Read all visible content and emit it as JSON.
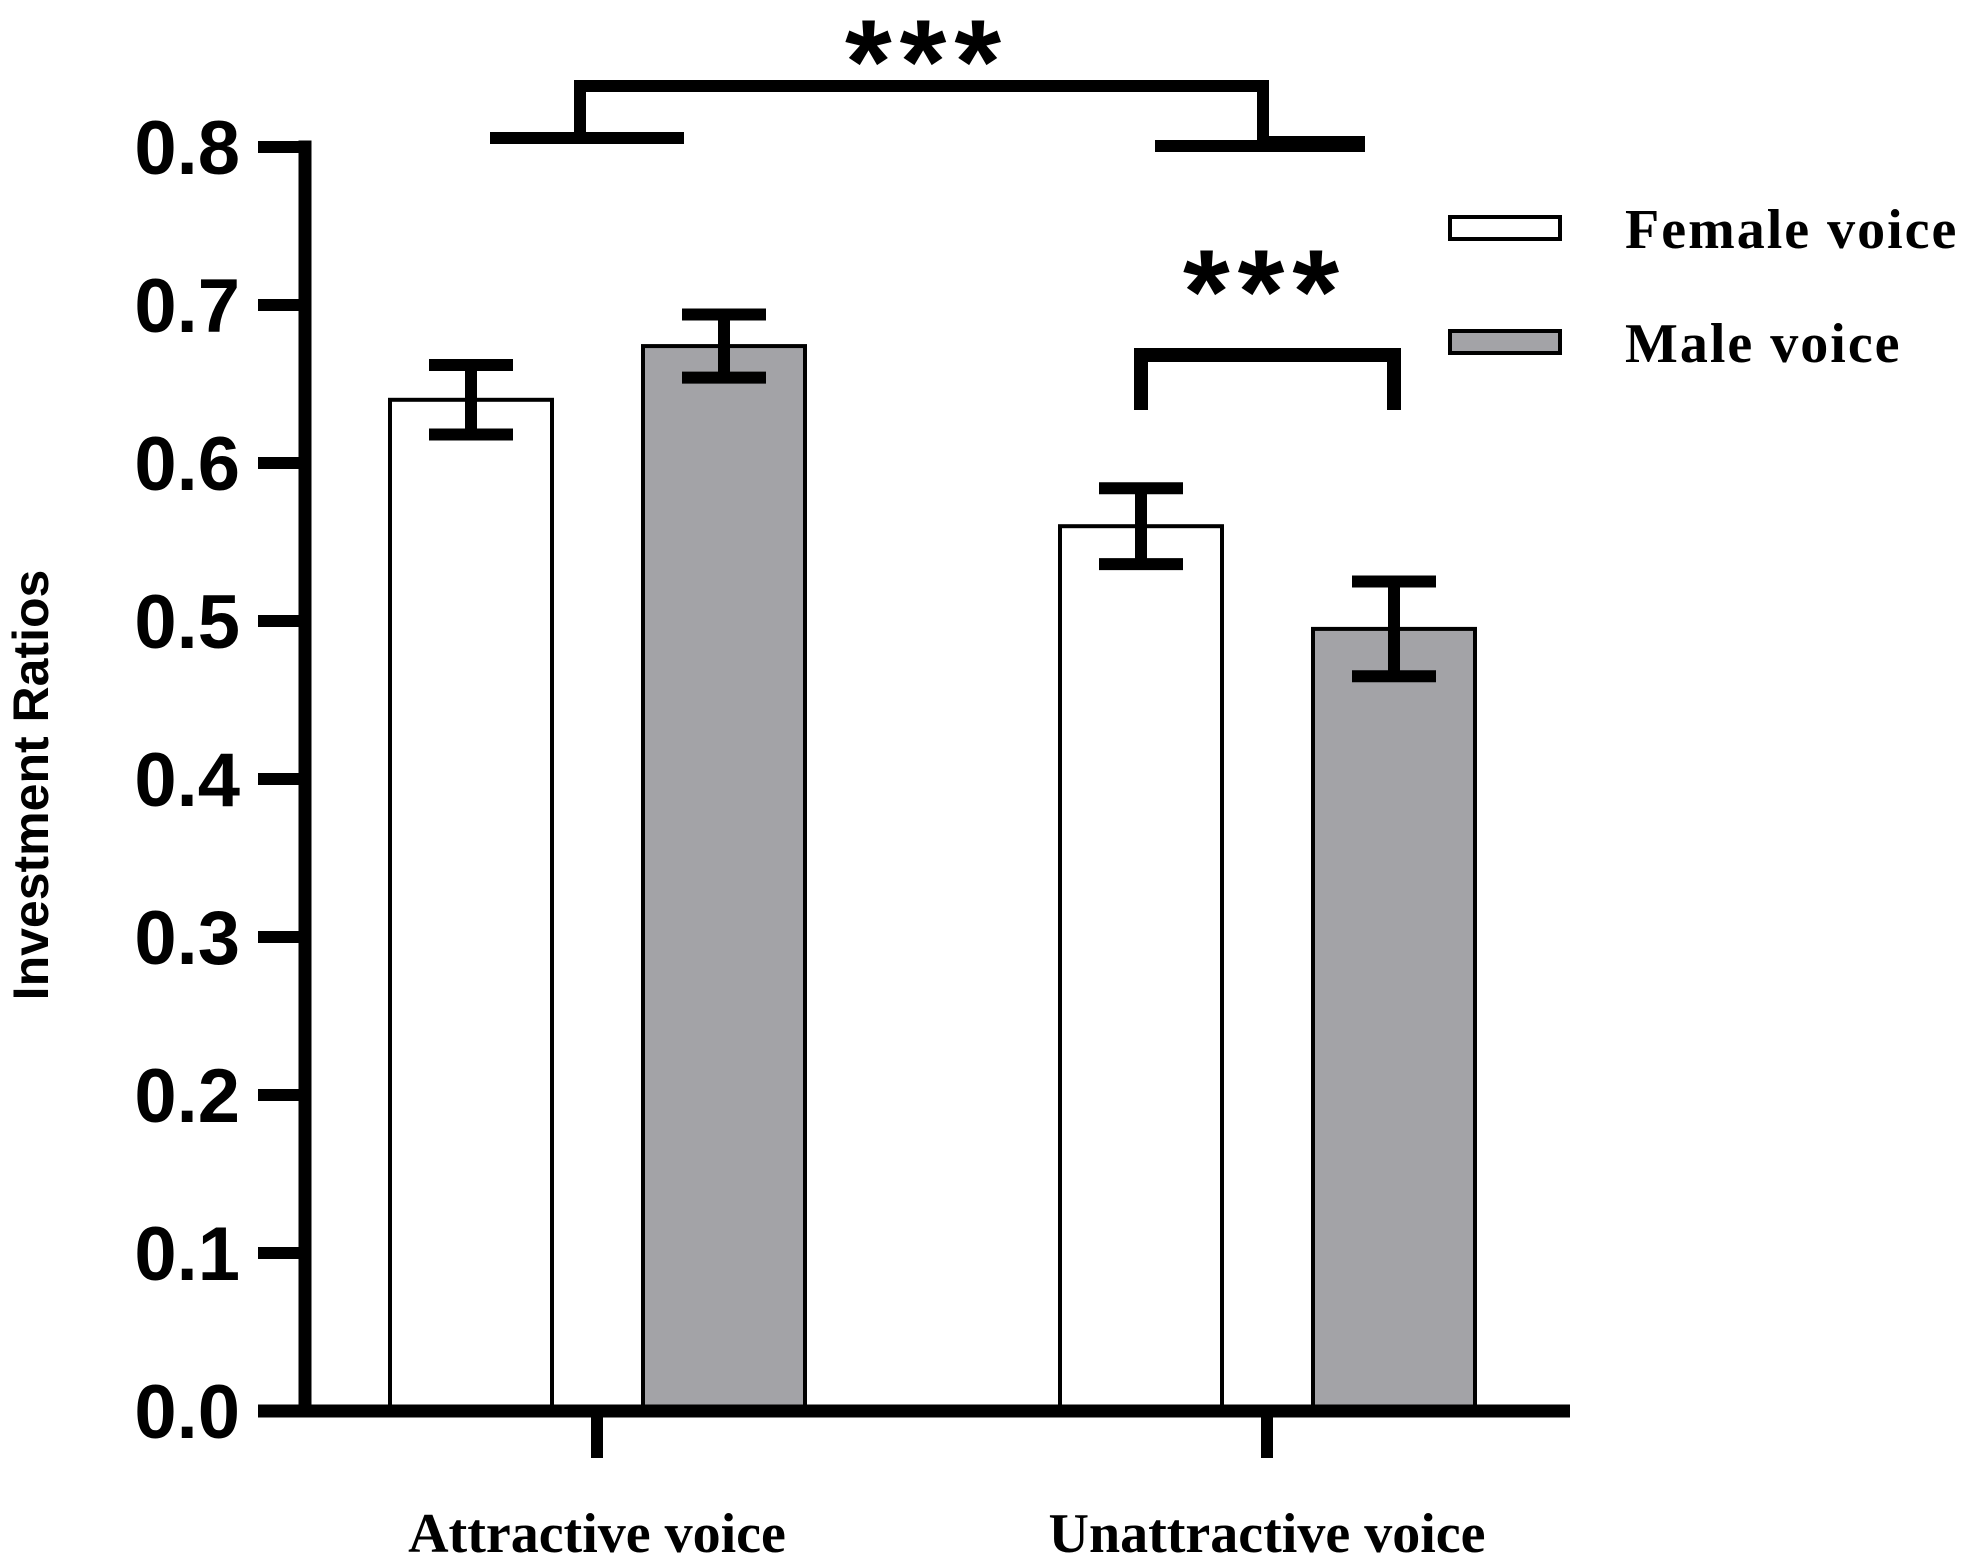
{
  "chart_data": {
    "type": "bar",
    "title": "",
    "xlabel": "",
    "ylabel": "Investment Ratios",
    "ylim": [
      0,
      0.8
    ],
    "yticks": [
      "0.0",
      "0.1",
      "0.2",
      "0.3",
      "0.4",
      "0.5",
      "0.6",
      "0.7",
      "0.8"
    ],
    "categories": [
      "Attractive voice",
      "Unattractive voice"
    ],
    "series": [
      {
        "name": "Female voice",
        "values": [
          0.64,
          0.56
        ],
        "errors": [
          0.022,
          0.024
        ],
        "color": "#ffffff"
      },
      {
        "name": "Male voice",
        "values": [
          0.674,
          0.495
        ],
        "errors": [
          0.02,
          0.03
        ],
        "color": "#a3a3a7"
      }
    ],
    "legend": {
      "position": "top-right"
    },
    "grid": false,
    "annotations": [
      {
        "text": "***",
        "between": "Attractive voice vs Unattractive voice"
      },
      {
        "text": "***",
        "between": "Female voice vs Male voice (Unattractive voice)"
      }
    ]
  }
}
